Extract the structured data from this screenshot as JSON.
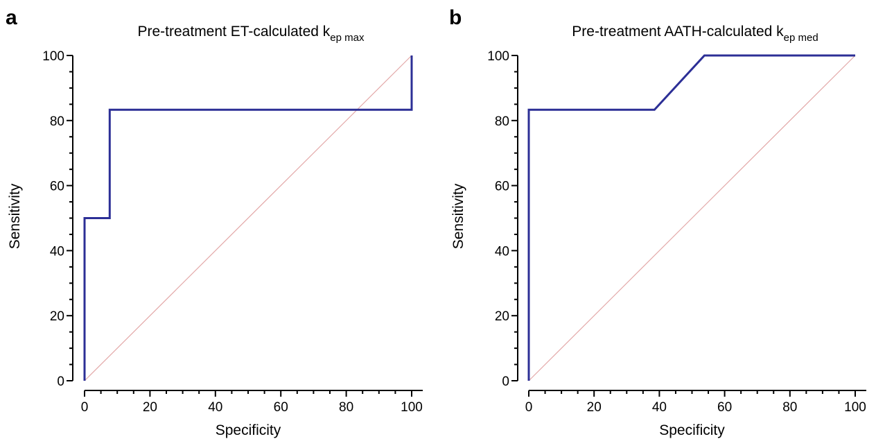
{
  "chart_data": [
    {
      "type": "line",
      "panel_label": "a",
      "title_main": "Pre-treatment ET-calculated k",
      "title_sub": "ep max",
      "xlabel": "Specificity",
      "ylabel": "Sensitivity",
      "xlim": [
        0,
        100
      ],
      "ylim": [
        0,
        100
      ],
      "xticks": [
        0,
        20,
        40,
        60,
        80,
        100
      ],
      "yticks": [
        0,
        20,
        40,
        60,
        80,
        100
      ],
      "grid": false,
      "colors": {
        "roc": "#2c2f96",
        "reference": "#e3a8a8"
      },
      "series": [
        {
          "x": [
            0,
            0,
            7.7,
            7.7,
            100,
            100
          ],
          "y": [
            0,
            50,
            50,
            83.3,
            83.3,
            100
          ]
        }
      ],
      "reference_line": {
        "x": [
          0,
          100
        ],
        "y": [
          0,
          100
        ]
      }
    },
    {
      "type": "line",
      "panel_label": "b",
      "title_main": "Pre-treatment AATH-calculated k",
      "title_sub": "ep med",
      "xlabel": "Specificity",
      "ylabel": "Sensitivity",
      "xlim": [
        0,
        100
      ],
      "ylim": [
        0,
        100
      ],
      "xticks": [
        0,
        20,
        40,
        60,
        80,
        100
      ],
      "yticks": [
        0,
        20,
        40,
        60,
        80,
        100
      ],
      "grid": false,
      "colors": {
        "roc": "#2c2f96",
        "reference": "#e3a8a8"
      },
      "series": [
        {
          "x": [
            0,
            0,
            38.5,
            53.8,
            100
          ],
          "y": [
            0,
            83.3,
            83.3,
            100,
            100
          ]
        }
      ],
      "reference_line": {
        "x": [
          0,
          100
        ],
        "y": [
          0,
          100
        ]
      }
    }
  ]
}
